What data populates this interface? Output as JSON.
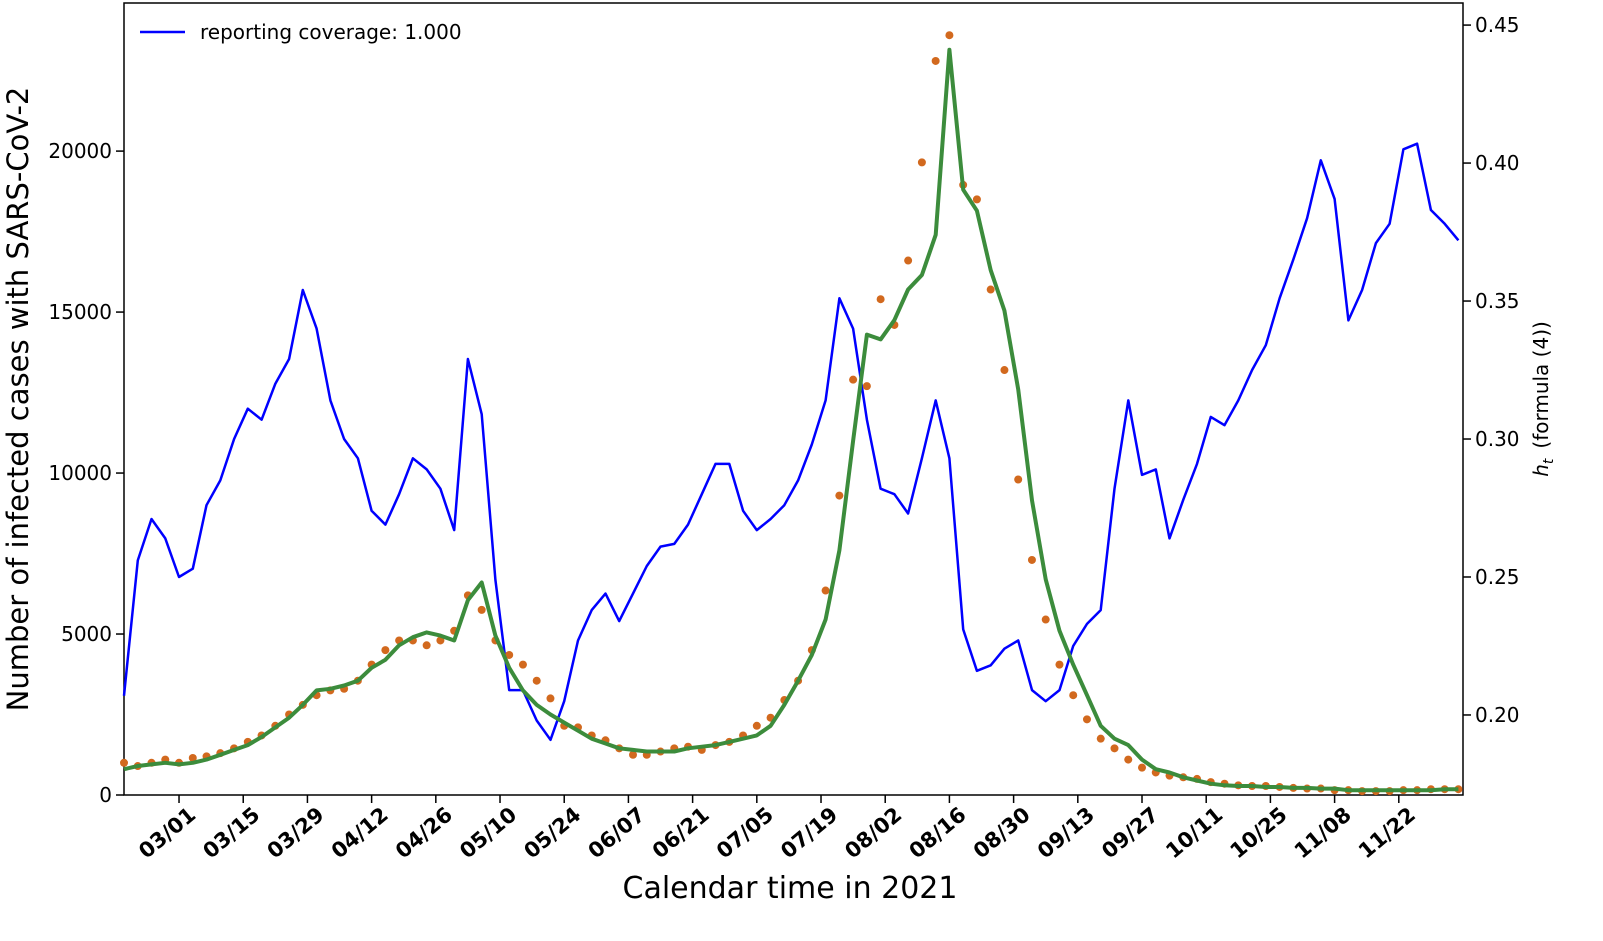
{
  "chart_data": {
    "type": "line",
    "xlabel": "Calendar time in 2021",
    "ylabel": "Number of infected cases with SARS-CoV-2",
    "y2label": {
      "symbol": "h",
      "subscript": "t",
      "text": "(formula (4))"
    },
    "legend": "upper left",
    "x": [
      "02/17",
      "02/20",
      "02/23",
      "02/26",
      "03/01",
      "03/04",
      "03/07",
      "03/10",
      "03/13",
      "03/16",
      "03/19",
      "03/22",
      "03/25",
      "03/28",
      "03/31",
      "04/03",
      "04/06",
      "04/09",
      "04/12",
      "04/15",
      "04/18",
      "04/21",
      "04/24",
      "04/27",
      "04/30",
      "05/03",
      "05/06",
      "05/09",
      "05/12",
      "05/15",
      "05/18",
      "05/21",
      "05/24",
      "05/27",
      "05/30",
      "06/02",
      "06/05",
      "06/08",
      "06/11",
      "06/14",
      "06/17",
      "06/20",
      "06/23",
      "06/26",
      "06/29",
      "07/02",
      "07/05",
      "07/08",
      "07/11",
      "07/14",
      "07/17",
      "07/20",
      "07/23",
      "07/26",
      "07/29",
      "08/01",
      "08/04",
      "08/07",
      "08/10",
      "08/13",
      "08/16",
      "08/19",
      "08/22",
      "08/25",
      "08/28",
      "08/31",
      "09/03",
      "09/06",
      "09/09",
      "09/12",
      "09/15",
      "09/18",
      "09/21",
      "09/24",
      "09/27",
      "09/30",
      "10/03",
      "10/06",
      "10/09",
      "10/12",
      "10/15",
      "10/18",
      "10/21",
      "10/24",
      "10/27",
      "10/30",
      "11/02",
      "11/05",
      "11/08",
      "11/11",
      "11/14",
      "11/17",
      "11/20",
      "11/23",
      "11/26",
      "11/29",
      "12/02",
      "12/05"
    ],
    "xlim": [
      "02/17",
      "12/06"
    ],
    "xticks": [
      "03/01",
      "03/15",
      "03/29",
      "04/12",
      "04/26",
      "05/10",
      "05/24",
      "06/07",
      "06/21",
      "07/05",
      "07/19",
      "08/02",
      "08/16",
      "08/30",
      "09/13",
      "09/27",
      "10/11",
      "10/25",
      "11/08",
      "11/22"
    ],
    "ylim": [
      0,
      24600
    ],
    "yticks": [
      0,
      5000,
      10000,
      15000,
      20000
    ],
    "y2lim": [
      0.171,
      0.458
    ],
    "y2ticks": [
      {
        "value": 0.2,
        "label": "0.20"
      },
      0.25,
      {
        "value": 0.3,
        "label": "0.30"
      },
      0.35,
      {
        "value": 0.4,
        "label": "0.40"
      },
      0.45
    ],
    "series": [
      {
        "name": "reporting coverage: 1.000",
        "color": "#0000ff",
        "axis": "y2",
        "values": [
          0.207,
          0.256,
          0.271,
          0.264,
          0.25,
          0.253,
          0.276,
          0.285,
          0.3,
          0.311,
          0.307,
          0.32,
          0.329,
          0.354,
          0.34,
          0.314,
          0.3,
          0.293,
          0.274,
          0.269,
          0.28,
          0.293,
          0.289,
          0.282,
          0.267,
          0.329,
          0.309,
          0.249,
          0.209,
          0.209,
          0.198,
          0.191,
          0.205,
          0.227,
          0.238,
          0.244,
          0.234,
          0.244,
          0.254,
          0.261,
          0.262,
          0.269,
          0.28,
          0.291,
          0.291,
          0.274,
          0.267,
          0.271,
          0.276,
          0.285,
          0.298,
          0.314,
          0.351,
          0.34,
          0.307,
          0.282,
          0.28,
          0.273,
          0.293,
          0.314,
          0.293,
          0.231,
          0.216,
          0.218,
          0.224,
          0.227,
          0.209,
          0.205,
          0.209,
          0.225,
          0.233,
          0.238,
          0.282,
          0.314,
          0.287,
          0.289,
          0.264,
          0.278,
          0.291,
          0.308,
          0.305,
          0.314,
          0.325,
          0.334,
          0.351,
          0.365,
          0.38,
          0.401,
          0.387,
          0.343,
          0.354,
          0.371,
          0.378,
          0.405,
          0.407,
          0.383,
          0.378,
          0.372
        ]
      },
      {
        "type": "scatter",
        "color": "#d2691e",
        "values": [
          1000,
          900,
          1000,
          1100,
          1000,
          1150,
          1200,
          1300,
          1450,
          1650,
          1850,
          2150,
          2500,
          2800,
          3100,
          3250,
          3300,
          3550,
          4050,
          4500,
          4800,
          4800,
          4650,
          4800,
          5100,
          6200,
          5750,
          4800,
          4350,
          4050,
          3550,
          3000,
          2150,
          2100,
          1850,
          1700,
          1450,
          1250,
          1250,
          1350,
          1450,
          1500,
          1400,
          1550,
          1650,
          1850,
          2150,
          2400,
          2950,
          3550,
          4500,
          6350,
          9300,
          12900,
          12700,
          15400,
          14600,
          16600,
          19650,
          22800,
          23600,
          18950,
          18500,
          15700,
          13200,
          9800,
          7300,
          5450,
          4050,
          3100,
          2350,
          1750,
          1450,
          1100,
          850,
          700,
          600,
          550,
          500,
          400,
          350,
          300,
          280,
          280,
          250,
          220,
          200,
          200,
          150,
          150,
          120,
          120,
          120,
          150,
          150,
          180,
          180,
          180
        ]
      },
      {
        "color": "#3c8c3c",
        "values": [
          800,
          900,
          950,
          1000,
          950,
          1000,
          1100,
          1250,
          1400,
          1550,
          1800,
          2100,
          2400,
          2800,
          3250,
          3300,
          3400,
          3550,
          3950,
          4200,
          4650,
          4900,
          5050,
          4950,
          4800,
          6050,
          6600,
          4950,
          3950,
          3250,
          2800,
          2500,
          2250,
          2000,
          1750,
          1600,
          1450,
          1400,
          1350,
          1350,
          1350,
          1450,
          1500,
          1550,
          1650,
          1750,
          1850,
          2150,
          2800,
          3550,
          4350,
          5450,
          7600,
          11000,
          14300,
          14150,
          14750,
          15700,
          16150,
          17400,
          23150,
          18800,
          18150,
          16300,
          15050,
          12600,
          9150,
          6700,
          5100,
          4050,
          3100,
          2150,
          1750,
          1550,
          1100,
          800,
          700,
          550,
          450,
          350,
          300,
          280,
          280,
          250,
          250,
          220,
          220,
          200,
          200,
          150,
          150,
          150,
          150,
          150,
          150,
          150,
          180,
          180
        ]
      }
    ]
  }
}
